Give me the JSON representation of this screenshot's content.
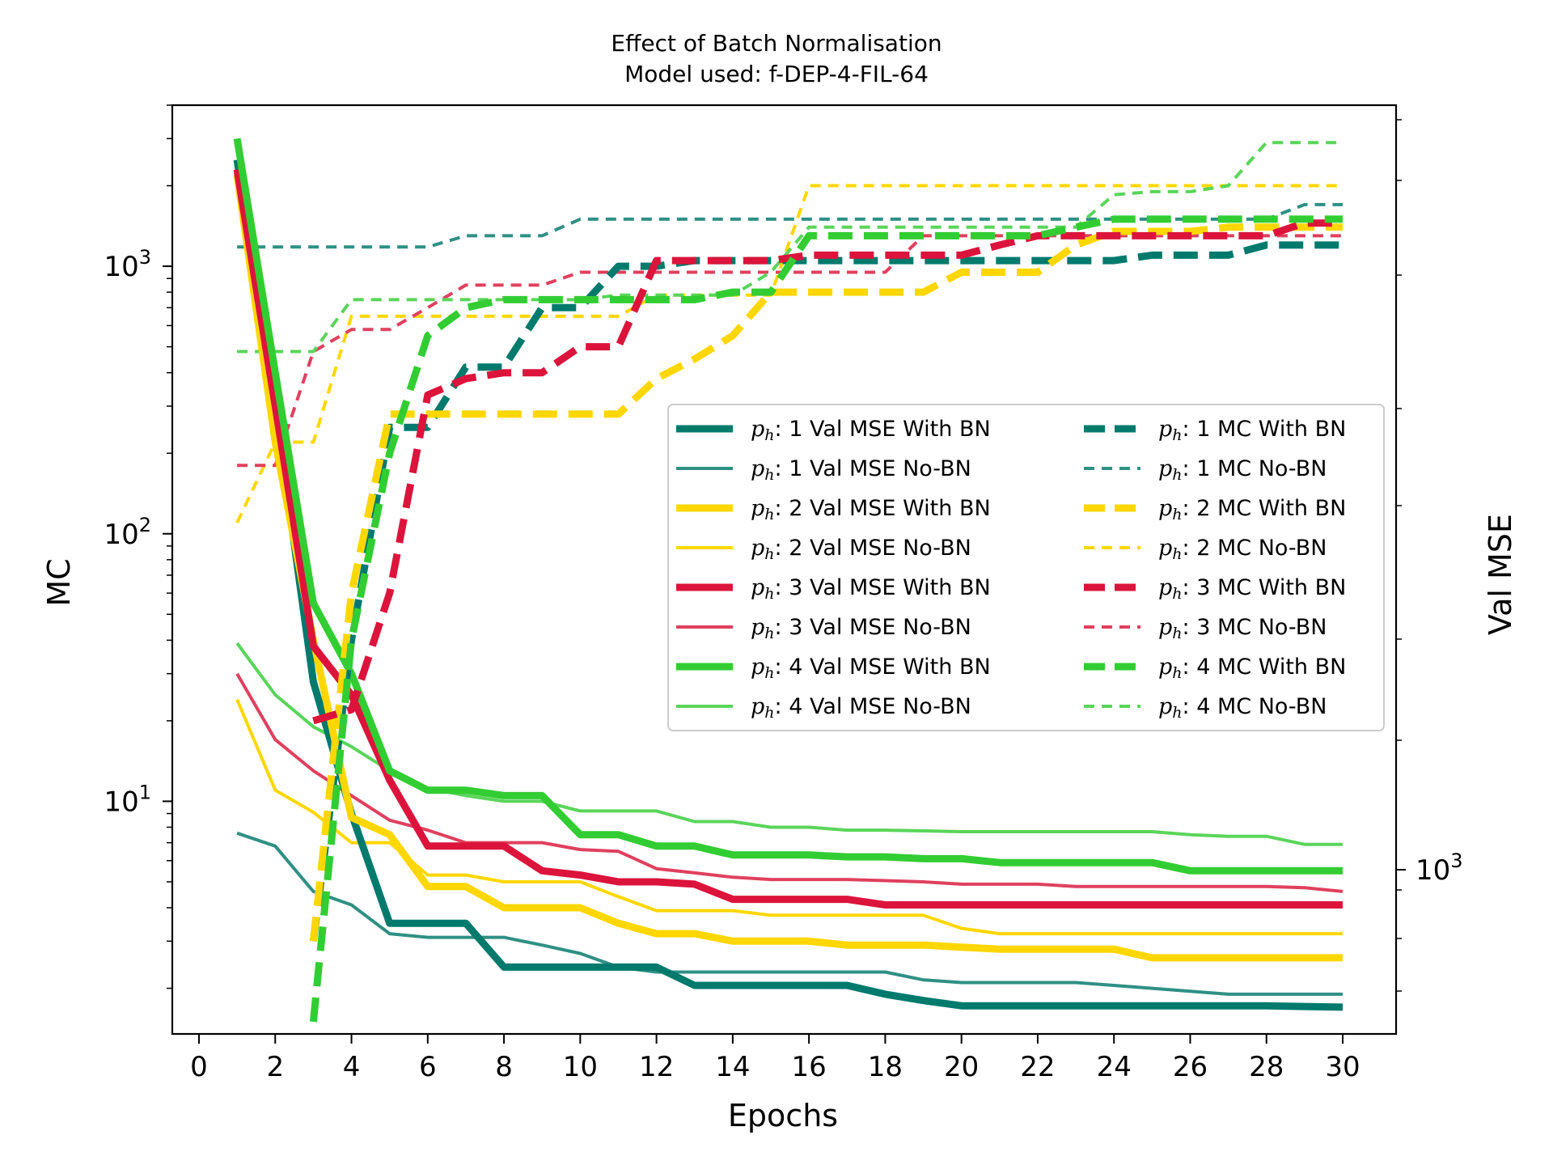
{
  "chart_data": {
    "type": "line",
    "title": "Effect of Batch Normalisation",
    "subtitle": "Model used: f-DEP-4-FIL-64",
    "xlabel": "Epochs",
    "ylabel": "MC",
    "ylabel_right": "Val MSE",
    "xlim": [
      -0.7,
      31.4
    ],
    "ylim": [
      1.35,
      4000
    ],
    "yscale": "log",
    "y2scale": "log",
    "x_ticks": [
      0,
      2,
      4,
      6,
      8,
      10,
      12,
      14,
      16,
      18,
      20,
      22,
      24,
      26,
      28,
      30
    ],
    "y_ticks": [
      {
        "base": "10",
        "exp": "1",
        "value": 10
      },
      {
        "base": "10",
        "exp": "2",
        "value": 100
      },
      {
        "base": "10",
        "exp": "3",
        "value": 1000
      }
    ],
    "y2_ticks": [
      {
        "base": "10",
        "exp": "3",
        "value": 1000
      }
    ],
    "grid": false,
    "legend_position": "center-right",
    "legend_columns": 2,
    "x": [
      1,
      2,
      3,
      4,
      5,
      6,
      7,
      8,
      9,
      10,
      11,
      12,
      13,
      14,
      15,
      16,
      17,
      18,
      19,
      20,
      21,
      22,
      23,
      24,
      25,
      26,
      27,
      28,
      29,
      30
    ],
    "series": [
      {
        "name": "1 Val MSE With BN",
        "color": "#007a6c",
        "style": "solid",
        "weight": "thick",
        "values": [
          2500,
          300,
          28,
          9,
          3.5,
          3.5,
          3.5,
          2.4,
          2.4,
          2.4,
          2.4,
          2.4,
          2.05,
          2.05,
          2.05,
          2.05,
          2.05,
          1.9,
          1.8,
          1.72,
          1.72,
          1.72,
          1.72,
          1.72,
          1.72,
          1.72,
          1.72,
          1.72,
          1.71,
          1.7
        ]
      },
      {
        "name": "1 Val MSE No-BN",
        "color": "#2f9084",
        "style": "solid",
        "weight": "thin",
        "values": [
          7.6,
          6.8,
          4.6,
          4.1,
          3.2,
          3.1,
          3.1,
          3.1,
          2.9,
          2.7,
          2.4,
          2.3,
          2.3,
          2.3,
          2.3,
          2.3,
          2.3,
          2.3,
          2.15,
          2.1,
          2.1,
          2.1,
          2.1,
          2.05,
          2.0,
          1.95,
          1.9,
          1.9,
          1.9,
          1.9
        ]
      },
      {
        "name": "2 Val MSE With BN",
        "color": "#ffd700",
        "style": "solid",
        "weight": "thick",
        "values": [
          2200,
          220,
          40,
          8.7,
          7.5,
          4.8,
          4.8,
          4.0,
          4.0,
          4.0,
          3.5,
          3.2,
          3.2,
          3.0,
          3.0,
          3.0,
          2.9,
          2.9,
          2.9,
          2.85,
          2.8,
          2.8,
          2.8,
          2.8,
          2.6,
          2.6,
          2.6,
          2.6,
          2.6,
          2.6
        ]
      },
      {
        "name": "2 Val MSE No-BN",
        "color": "#ffd700",
        "style": "solid",
        "weight": "thin",
        "values": [
          24,
          11,
          9.1,
          7,
          7,
          5.3,
          5.3,
          5.0,
          5.0,
          5.0,
          4.4,
          3.9,
          3.9,
          3.9,
          3.75,
          3.75,
          3.75,
          3.75,
          3.75,
          3.35,
          3.2,
          3.2,
          3.2,
          3.2,
          3.2,
          3.2,
          3.2,
          3.2,
          3.2,
          3.2
        ]
      },
      {
        "name": "3 Val MSE With BN",
        "color": "#dc143c",
        "style": "solid",
        "weight": "thick",
        "values": [
          2300,
          300,
          38,
          25,
          12,
          6.8,
          6.8,
          6.8,
          5.5,
          5.3,
          5.0,
          5.0,
          4.9,
          4.3,
          4.3,
          4.3,
          4.3,
          4.1,
          4.1,
          4.1,
          4.1,
          4.1,
          4.1,
          4.1,
          4.1,
          4.1,
          4.1,
          4.1,
          4.1,
          4.1
        ]
      },
      {
        "name": "3 Val MSE No-BN",
        "color": "#e0405e",
        "style": "solid",
        "weight": "thin",
        "values": [
          30,
          17,
          13,
          10.5,
          8.5,
          7.8,
          7.0,
          7.0,
          7.0,
          6.6,
          6.5,
          5.6,
          5.4,
          5.2,
          5.1,
          5.1,
          5.1,
          5.05,
          5.0,
          4.9,
          4.9,
          4.9,
          4.8,
          4.8,
          4.8,
          4.8,
          4.8,
          4.8,
          4.75,
          4.6
        ]
      },
      {
        "name": "4 Val MSE With BN",
        "color": "#32cd32",
        "style": "solid",
        "weight": "thick",
        "values": [
          3000,
          400,
          55,
          30,
          13,
          11,
          11,
          10.5,
          10.5,
          7.5,
          7.5,
          6.8,
          6.8,
          6.3,
          6.3,
          6.3,
          6.2,
          6.2,
          6.1,
          6.1,
          5.9,
          5.9,
          5.9,
          5.9,
          5.9,
          5.5,
          5.5,
          5.5,
          5.5,
          5.5
        ]
      },
      {
        "name": "4 Val MSE No-BN",
        "color": "#5ad55a",
        "style": "solid",
        "weight": "thin",
        "values": [
          39,
          25,
          19,
          16,
          13,
          11.2,
          10.5,
          10.0,
          10.0,
          9.2,
          9.2,
          9.2,
          8.4,
          8.4,
          8.0,
          8.0,
          7.8,
          7.8,
          7.75,
          7.7,
          7.7,
          7.7,
          7.7,
          7.7,
          7.7,
          7.5,
          7.4,
          7.4,
          6.9,
          6.9
        ]
      },
      {
        "name": "1 MC With BN",
        "color": "#007a6c",
        "style": "dashed",
        "weight": "thick",
        "x": [
          3,
          4,
          5,
          6,
          7,
          8,
          9,
          10,
          11,
          12,
          13,
          14,
          15,
          16,
          17,
          18,
          19,
          20,
          21,
          22,
          23,
          24,
          25,
          26,
          27,
          28,
          29,
          30
        ],
        "values": [
          3,
          40,
          250,
          250,
          420,
          420,
          700,
          700,
          1000,
          1000,
          1050,
          1050,
          1050,
          1050,
          1050,
          1050,
          1050,
          1050,
          1050,
          1050,
          1050,
          1050,
          1100,
          1100,
          1100,
          1200,
          1200,
          1200
        ]
      },
      {
        "name": "1 MC No-BN",
        "color": "#2f9084",
        "style": "dashed",
        "weight": "thin",
        "values": [
          1180,
          1180,
          1180,
          1180,
          1180,
          1180,
          1300,
          1300,
          1300,
          1500,
          1500,
          1500,
          1500,
          1500,
          1500,
          1500,
          1500,
          1500,
          1500,
          1500,
          1500,
          1500,
          1500,
          1500,
          1500,
          1500,
          1500,
          1500,
          1700,
          1700
        ]
      },
      {
        "name": "2 MC With BN",
        "color": "#ffd700",
        "style": "dashed",
        "weight": "thick",
        "x": [
          3,
          4,
          5,
          6,
          7,
          8,
          9,
          10,
          11,
          12,
          13,
          14,
          15,
          16,
          17,
          18,
          19,
          20,
          21,
          22,
          23,
          24,
          25,
          26,
          27,
          28,
          29,
          30
        ],
        "values": [
          3,
          60,
          280,
          280,
          280,
          280,
          280,
          280,
          280,
          380,
          450,
          550,
          800,
          800,
          800,
          800,
          800,
          950,
          950,
          950,
          1200,
          1350,
          1350,
          1350,
          1400,
          1400,
          1400,
          1400
        ]
      },
      {
        "name": "2 MC No-BN",
        "color": "#ffd700",
        "style": "dashed",
        "weight": "thin",
        "values": [
          110,
          220,
          220,
          650,
          650,
          650,
          650,
          650,
          650,
          650,
          650,
          780,
          780,
          780,
          780,
          2000,
          2000,
          2000,
          2000,
          2000,
          2000,
          2000,
          2000,
          2000,
          2000,
          2000,
          2000,
          2000,
          2000,
          2000
        ]
      },
      {
        "name": "3 MC With BN",
        "color": "#dc143c",
        "style": "dashed",
        "weight": "thick",
        "x": [
          3,
          4,
          5,
          6,
          7,
          8,
          9,
          10,
          11,
          12,
          13,
          14,
          15,
          16,
          17,
          18,
          19,
          20,
          21,
          22,
          23,
          24,
          25,
          26,
          27,
          28,
          29,
          30
        ],
        "values": [
          20,
          22,
          60,
          330,
          380,
          400,
          400,
          500,
          500,
          1050,
          1050,
          1050,
          1050,
          1100,
          1100,
          1100,
          1100,
          1100,
          1200,
          1300,
          1300,
          1300,
          1300,
          1300,
          1300,
          1300,
          1450,
          1450
        ]
      },
      {
        "name": "3 MC No-BN",
        "color": "#e0405e",
        "style": "dashed",
        "weight": "thin",
        "values": [
          180,
          180,
          480,
          580,
          580,
          700,
          850,
          850,
          850,
          950,
          950,
          950,
          950,
          950,
          950,
          950,
          950,
          950,
          1300,
          1300,
          1300,
          1300,
          1300,
          1300,
          1300,
          1300,
          1300,
          1300,
          1300,
          1300
        ]
      },
      {
        "name": "4 MC With BN",
        "color": "#32cd32",
        "style": "dashed",
        "weight": "thick",
        "x": [
          3,
          4,
          5,
          6,
          7,
          8,
          9,
          10,
          11,
          12,
          13,
          14,
          15,
          16,
          17,
          18,
          19,
          20,
          21,
          22,
          23,
          24,
          25,
          26,
          27,
          28,
          29,
          30
        ],
        "values": [
          1.5,
          40,
          200,
          550,
          700,
          750,
          750,
          750,
          750,
          750,
          750,
          800,
          800,
          1300,
          1300,
          1300,
          1300,
          1300,
          1300,
          1300,
          1400,
          1500,
          1500,
          1500,
          1500,
          1500,
          1500,
          1500
        ]
      },
      {
        "name": "4 MC No-BN",
        "color": "#5ad55a",
        "style": "dashed",
        "weight": "thin",
        "values": [
          480,
          480,
          480,
          750,
          750,
          750,
          750,
          750,
          750,
          750,
          780,
          780,
          780,
          780,
          950,
          1400,
          1400,
          1400,
          1400,
          1400,
          1400,
          1400,
          1400,
          1850,
          1900,
          1900,
          2000,
          2900,
          2900,
          2900
        ]
      }
    ]
  },
  "legend_prefix": "p",
  "legend_subscript": "h",
  "legend_labels": [
    ": 1 Val MSE With BN",
    ": 1 Val MSE No-BN",
    ": 2 Val MSE With BN",
    ": 2 Val MSE No-BN",
    ": 3 Val MSE With BN",
    ": 3 Val MSE No-BN",
    ": 4 Val MSE With BN",
    ": 4 Val MSE No-BN",
    ": 1 MC With BN",
    ": 1 MC No-BN",
    ": 2 MC With BN",
    ": 2 MC No-BN",
    ": 3 MC With BN",
    ": 3 MC No-BN",
    ": 4 MC With BN",
    ": 4 MC No-BN"
  ]
}
